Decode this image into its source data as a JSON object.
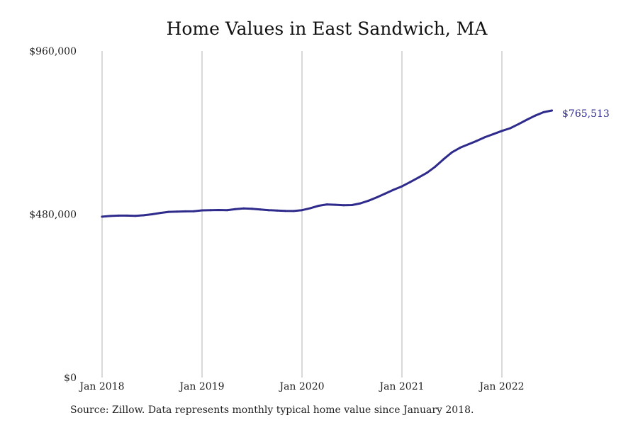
{
  "chart_data": {
    "type": "line",
    "title": "Home Values in East Sandwich, MA",
    "xlabel": "",
    "ylabel": "",
    "x_tick_labels": [
      "Jan 2018",
      "Jan 2019",
      "Jan 2020",
      "Jan 2021",
      "Jan 2022"
    ],
    "y_tick_labels": [
      "$0",
      "$480,000",
      "$960,000"
    ],
    "y_ticks": [
      0,
      480000,
      960000
    ],
    "ylim": [
      0,
      960000
    ],
    "xlim": [
      "2018-01",
      "2022-07"
    ],
    "grid": "vertical lines at January of each year",
    "end_label": "$765,513",
    "series": [
      {
        "color": "#2e2b8c",
        "x": [
          "2018-01",
          "2018-02",
          "2018-03",
          "2018-04",
          "2018-05",
          "2018-06",
          "2018-07",
          "2018-08",
          "2018-09",
          "2018-10",
          "2018-11",
          "2018-12",
          "2019-01",
          "2019-02",
          "2019-03",
          "2019-04",
          "2019-05",
          "2019-06",
          "2019-07",
          "2019-08",
          "2019-09",
          "2019-10",
          "2019-11",
          "2019-12",
          "2020-01",
          "2020-02",
          "2020-03",
          "2020-04",
          "2020-05",
          "2020-06",
          "2020-07",
          "2020-08",
          "2020-09",
          "2020-10",
          "2020-11",
          "2020-12",
          "2021-01",
          "2021-02",
          "2021-03",
          "2021-04",
          "2021-05",
          "2021-06",
          "2021-07",
          "2021-08",
          "2021-09",
          "2021-10",
          "2021-11",
          "2021-12",
          "2022-01",
          "2022-02",
          "2022-03",
          "2022-04",
          "2022-05",
          "2022-06",
          "2022-07"
        ],
        "values": [
          473000,
          475000,
          476000,
          476000,
          475500,
          477000,
          480000,
          484000,
          487000,
          488000,
          488500,
          489000,
          491500,
          492000,
          492500,
          492000,
          495000,
          497000,
          496000,
          494000,
          492000,
          491000,
          490000,
          489500,
          492000,
          498000,
          505000,
          509000,
          508000,
          506500,
          507000,
          512000,
          520000,
          530000,
          541000,
          552000,
          562000,
          575000,
          588000,
          602000,
          620000,
          642000,
          662000,
          676000,
          686000,
          696000,
          707000,
          716000,
          725000,
          733000,
          745000,
          758000,
          770000,
          780000,
          785000
        ]
      }
    ]
  },
  "source_note": "Source: Zillow. Data represents monthly typical home value since January 2018."
}
